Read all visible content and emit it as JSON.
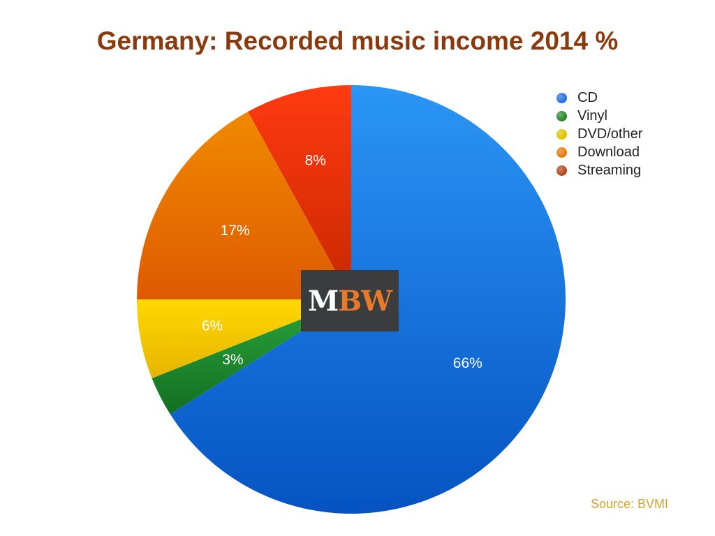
{
  "chart_data": {
    "type": "pie",
    "title": "Germany: Recorded music income 2014 %",
    "slices": [
      {
        "name": "CD",
        "value": 66,
        "label": "66%",
        "color": "#1f6fdd"
      },
      {
        "name": "Vinyl",
        "value": 3,
        "label": "3%",
        "color": "#1f8a2e"
      },
      {
        "name": "DVD/other",
        "value": 6,
        "label": "6%",
        "color": "#f2c200"
      },
      {
        "name": "Download",
        "value": 17,
        "label": "17%",
        "color": "#e86a00"
      },
      {
        "name": "Streaming",
        "value": 8,
        "label": "8%",
        "color": "#e03a00"
      }
    ],
    "legend_position": "top-right",
    "legend_swatch_colors": [
      "#2272e3",
      "#2a8a2a",
      "#e2c400",
      "#e87a10",
      "#b04a1a"
    ]
  },
  "source_note": "Source: BVMI",
  "watermark": {
    "text_m": "M",
    "text_bw": "BW",
    "m_color": "#ffffff",
    "bw_color": "#e87a2a"
  }
}
